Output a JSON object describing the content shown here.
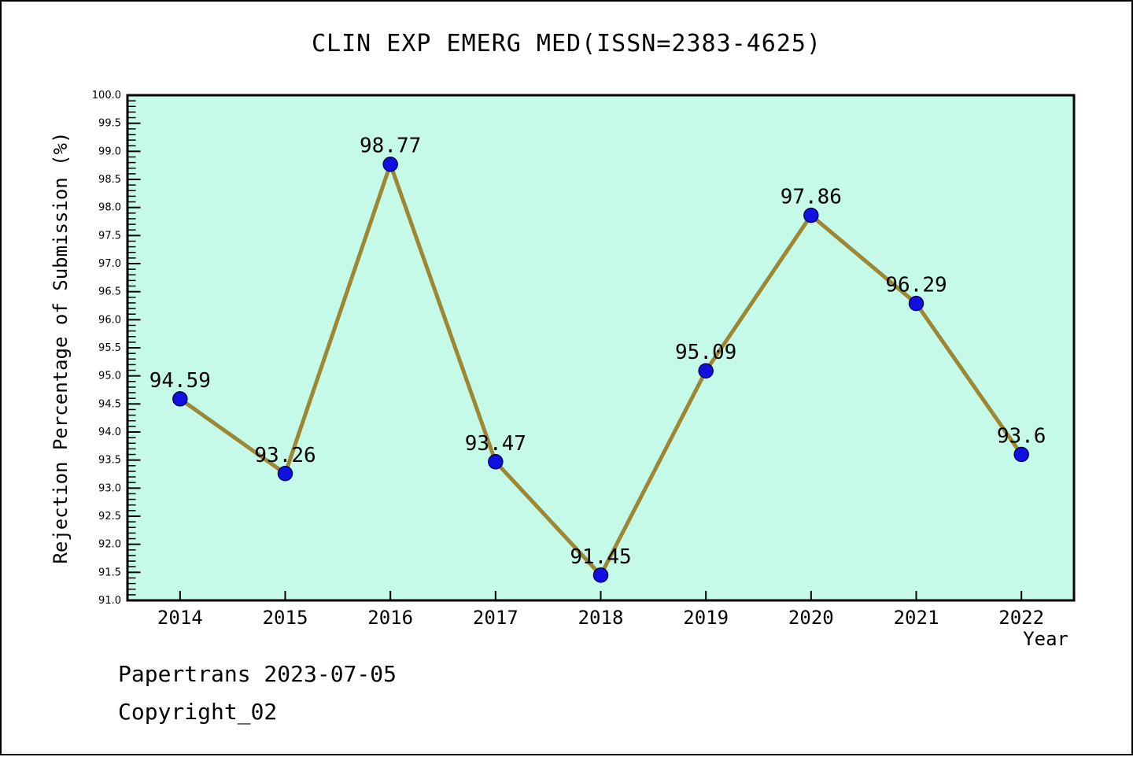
{
  "title": "CLIN EXP EMERG MED(ISSN=2383-4625)",
  "footer": {
    "line1": "Papertrans 2023-07-05",
    "line2": "Copyright_02"
  },
  "chart_data": {
    "type": "line",
    "title": "CLIN EXP EMERG MED(ISSN=2383-4625)",
    "xlabel": "Year",
    "ylabel": "Rejection Percentage of Submission (%)",
    "categories": [
      "2014",
      "2015",
      "2016",
      "2017",
      "2018",
      "2019",
      "2020",
      "2021",
      "2022"
    ],
    "values": [
      94.59,
      93.26,
      98.77,
      93.47,
      91.45,
      95.09,
      97.86,
      96.29,
      93.6
    ],
    "ylim": [
      91.0,
      100.0
    ],
    "ytick_major_step": 0.5,
    "ytick_minor_step": 0.1,
    "grid": "off",
    "legend": "none",
    "colors": {
      "plot_bg": "#c5f9e8",
      "line": "#9d8733",
      "marker_fill": "#1010e0",
      "marker_edge": "#000066",
      "axis": "#000000",
      "text": "#000000"
    }
  }
}
